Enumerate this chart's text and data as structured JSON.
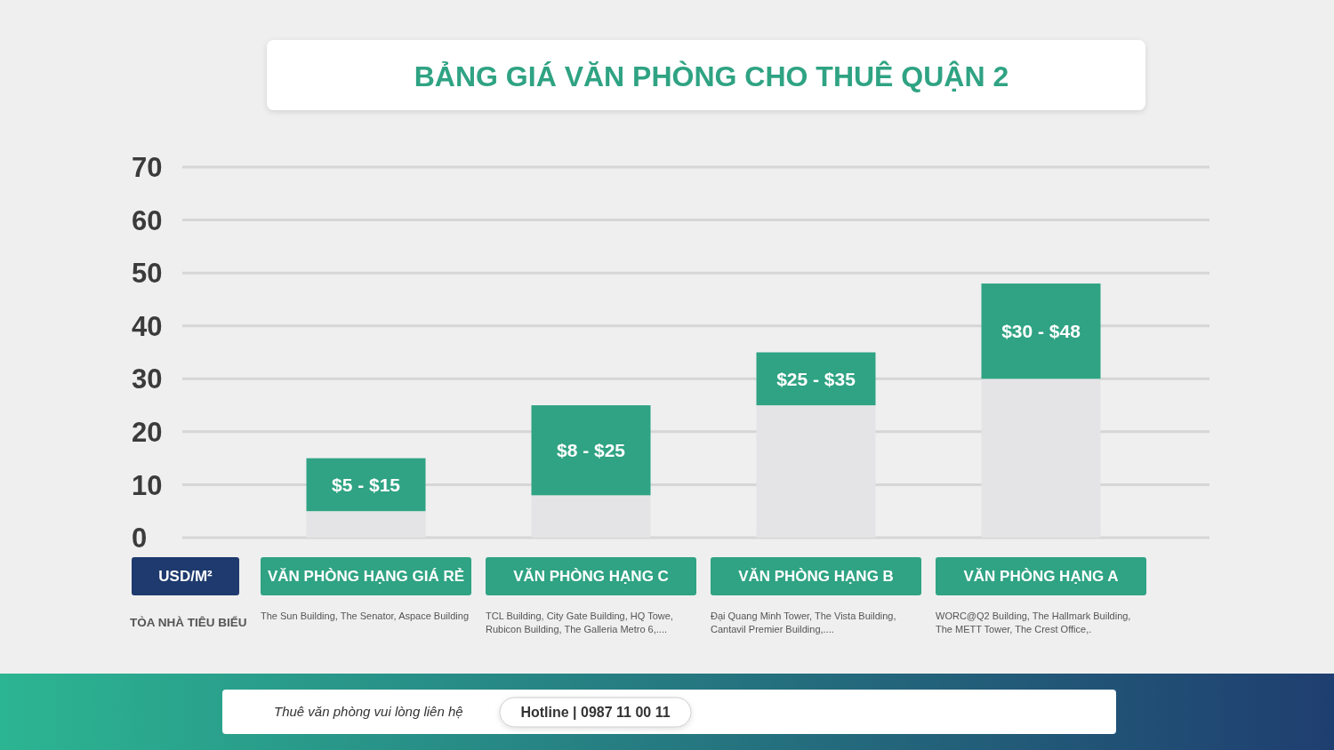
{
  "chart_data": {
    "type": "bar",
    "title": "BẢNG GIÁ VĂN PHÒNG CHO THUÊ QUẬN 2",
    "ylabel": "USD/M²",
    "categories": [
      "VĂN PHÒNG HẠNG GIÁ RẺ",
      "VĂN PHÒNG HẠNG C",
      "VĂN PHÒNG HẠNG B",
      "VĂN PHÒNG HẠNG A"
    ],
    "stacked": true,
    "series": [
      {
        "color": "#e4e4e6",
        "values": [
          5,
          8,
          25,
          30
        ]
      },
      {
        "color": "#2fa383",
        "values": [
          10,
          17,
          10,
          18
        ]
      }
    ],
    "ylim": [
      0,
      70
    ],
    "yticks": [
      0,
      10,
      20,
      30,
      40,
      50,
      60,
      70
    ],
    "grid": "y",
    "annotations": [
      "TÒA NHÀ TIÊU BIỂU",
      "The Sun Building, The Senator, Aspace Building",
      "TCL Building, City Gate Building, HQ Towe, Rubicon Building, The Galleria Metro 6,....",
      "Đại Quang Minh Tower, The Vista Building, Cantavil Premier Building,....",
      "WORC@Q2 Building, The Hallmark Building, The METT Tower, The Crest Office,.",
      "Thuê văn phòng vui lòng liên hệ",
      "Hotline | 0987 11 00 11",
      "$5 - $15",
      "$8 - $25",
      "$25 - $35",
      "$30 - $48"
    ]
  }
}
